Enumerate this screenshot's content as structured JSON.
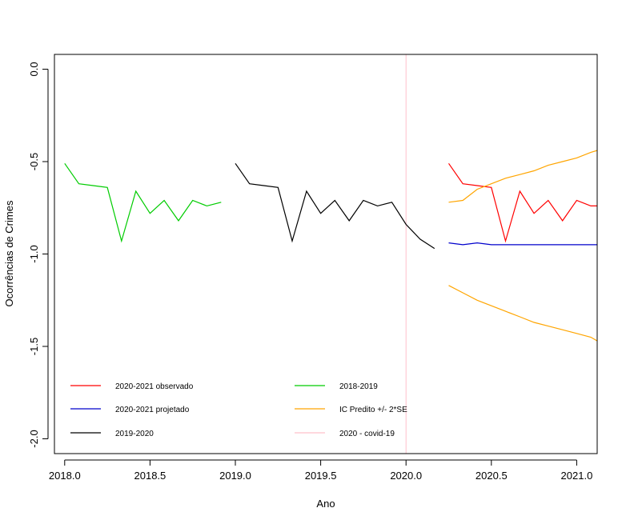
{
  "chart_data": {
    "type": "line",
    "title": "",
    "xlabel": "Ano",
    "ylabel": "Ocorrências de Crimes",
    "xlim": [
      2017.94,
      2021.12
    ],
    "ylim": [
      -2.08,
      0.08
    ],
    "x_ticks": [
      2018.0,
      2018.5,
      2019.0,
      2019.5,
      2020.0,
      2020.5,
      2021.0
    ],
    "x_tick_labels": [
      "2018.0",
      "2018.5",
      "2019.0",
      "2019.5",
      "2020.0",
      "2020.5",
      "2021.0"
    ],
    "y_ticks": [
      0.0,
      -0.5,
      -1.0,
      -1.5,
      -2.0
    ],
    "y_tick_labels": [
      "0.0",
      "-0.5",
      "-1.0",
      "-1.5",
      "-2.0"
    ],
    "grid": false,
    "series": [
      {
        "name": "2018-2019",
        "color": "#00cc00",
        "x": [
          2018.0,
          2018.083,
          2018.167,
          2018.25,
          2018.333,
          2018.417,
          2018.5,
          2018.583,
          2018.667,
          2018.75,
          2018.833,
          2018.917
        ],
        "y": [
          -0.51,
          -0.62,
          -0.63,
          -0.64,
          -0.93,
          -0.66,
          -0.78,
          -0.71,
          -0.82,
          -0.71,
          -0.74,
          -0.72
        ]
      },
      {
        "name": "2019-2020",
        "color": "#000000",
        "x": [
          2019.0,
          2019.083,
          2019.167,
          2019.25,
          2019.333,
          2019.417,
          2019.5,
          2019.583,
          2019.667,
          2019.75,
          2019.833,
          2019.917,
          2020.0,
          2020.083,
          2020.167
        ],
        "y": [
          -0.51,
          -0.62,
          -0.63,
          -0.64,
          -0.93,
          -0.66,
          -0.78,
          -0.71,
          -0.82,
          -0.71,
          -0.74,
          -0.72,
          -0.84,
          -0.92,
          -0.97
        ]
      },
      {
        "name": "2020-2021 observado",
        "color": "#ff0000",
        "x": [
          2020.25,
          2020.333,
          2020.417,
          2020.5,
          2020.583,
          2020.667,
          2020.75,
          2020.833,
          2020.917,
          2021.0,
          2021.083,
          2021.12
        ],
        "y": [
          -0.51,
          -0.62,
          -0.63,
          -0.64,
          -0.93,
          -0.66,
          -0.78,
          -0.71,
          -0.82,
          -0.71,
          -0.74,
          -0.74
        ]
      },
      {
        "name": "2020-2021 projetado",
        "color": "#0000cc",
        "x": [
          2020.25,
          2020.333,
          2020.417,
          2020.5,
          2020.583,
          2020.667,
          2020.75,
          2020.833,
          2020.917,
          2021.0,
          2021.083,
          2021.12
        ],
        "y": [
          -0.94,
          -0.95,
          -0.94,
          -0.95,
          -0.95,
          -0.95,
          -0.95,
          -0.95,
          -0.95,
          -0.95,
          -0.95,
          -0.95
        ]
      },
      {
        "name": "IC Predito +/- 2*SE",
        "color": "#ffa500",
        "x": [
          2020.25,
          2020.333,
          2020.417,
          2020.5,
          2020.583,
          2020.667,
          2020.75,
          2020.833,
          2020.917,
          2021.0,
          2021.083,
          2021.12
        ],
        "y": [
          -0.72,
          -0.71,
          -0.65,
          -0.62,
          -0.59,
          -0.57,
          -0.55,
          -0.52,
          -0.5,
          -0.48,
          -0.45,
          -0.44
        ]
      },
      {
        "name": "IC Predito +/- 2*SE",
        "color": "#ffa500",
        "x": [
          2020.25,
          2020.333,
          2020.417,
          2020.5,
          2020.583,
          2020.667,
          2020.75,
          2020.833,
          2020.917,
          2021.0,
          2021.083,
          2021.12
        ],
        "y": [
          -1.17,
          -1.21,
          -1.25,
          -1.28,
          -1.31,
          -1.34,
          -1.37,
          -1.39,
          -1.41,
          -1.43,
          -1.45,
          -1.47
        ]
      }
    ],
    "vline": {
      "x": 2020.0,
      "color": "#ffc0cb",
      "name": "2020 - covid-19"
    },
    "legend": {
      "placement": "bottom-left",
      "entries": [
        {
          "label": "2020-2021 observado",
          "color": "#ff0000"
        },
        {
          "label": "2020-2021 projetado",
          "color": "#0000cc"
        },
        {
          "label": "2019-2020",
          "color": "#000000"
        },
        {
          "label": "2018-2019",
          "color": "#00cc00"
        },
        {
          "label": "IC Predito +/- 2*SE",
          "color": "#ffa500"
        },
        {
          "label": "2020 - covid-19",
          "color": "#ffc0cb"
        }
      ]
    }
  }
}
